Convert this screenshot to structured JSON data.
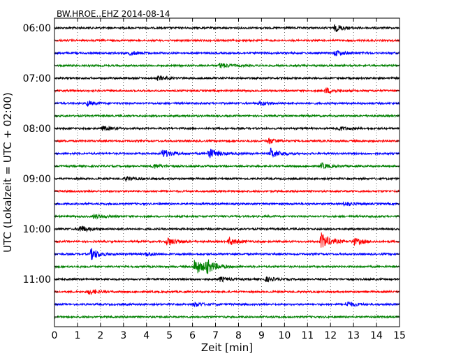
{
  "chart_data": {
    "type": "line",
    "title": "BW.HROE..EHZ 2014-08-14",
    "xlabel": "Zeit  [min]",
    "ylabel": "UTC (Lokalzeit = UTC + 02:00)",
    "xlim": [
      0,
      15
    ],
    "x_ticks": [
      "0",
      "1",
      "2",
      "3",
      "4",
      "5",
      "6",
      "7",
      "8",
      "9",
      "10",
      "11",
      "12",
      "13",
      "14",
      "15"
    ],
    "y_tick_labels": [
      "06:00",
      "07:00",
      "08:00",
      "09:00",
      "10:00",
      "11:00"
    ],
    "grid": "vertical dotted",
    "trace_colors": [
      "#000000",
      "#ff0000",
      "#0000ff",
      "#008000"
    ],
    "traces": [
      {
        "start": "06:00",
        "color": "#000000",
        "events": [
          {
            "t": 12.2,
            "amp": 5
          }
        ]
      },
      {
        "start": "06:15",
        "color": "#ff0000",
        "events": []
      },
      {
        "start": "06:30",
        "color": "#0000ff",
        "events": [
          {
            "t": 3.3,
            "amp": 3
          },
          {
            "t": 12.2,
            "amp": 4
          }
        ]
      },
      {
        "start": "06:45",
        "color": "#008000",
        "events": [
          {
            "t": 7.2,
            "amp": 4
          }
        ]
      },
      {
        "start": "07:00",
        "color": "#000000",
        "events": [
          {
            "t": 4.5,
            "amp": 3
          }
        ]
      },
      {
        "start": "07:15",
        "color": "#ff0000",
        "events": [
          {
            "t": 11.8,
            "amp": 4
          }
        ]
      },
      {
        "start": "07:30",
        "color": "#0000ff",
        "events": [
          {
            "t": 1.4,
            "amp": 3
          },
          {
            "t": 8.9,
            "amp": 3
          }
        ]
      },
      {
        "start": "07:45",
        "color": "#008000",
        "events": []
      },
      {
        "start": "08:00",
        "color": "#000000",
        "events": [
          {
            "t": 2.1,
            "amp": 3
          },
          {
            "t": 12.3,
            "amp": 3
          }
        ]
      },
      {
        "start": "08:15",
        "color": "#ff0000",
        "events": [
          {
            "t": 9.3,
            "amp": 4
          }
        ]
      },
      {
        "start": "08:30",
        "color": "#0000ff",
        "events": [
          {
            "t": 4.7,
            "amp": 6
          },
          {
            "t": 6.7,
            "amp": 8
          },
          {
            "t": 9.4,
            "amp": 7
          }
        ]
      },
      {
        "start": "08:45",
        "color": "#008000",
        "events": [
          {
            "t": 4.3,
            "amp": 3
          },
          {
            "t": 11.6,
            "amp": 4
          }
        ]
      },
      {
        "start": "09:00",
        "color": "#000000",
        "events": [
          {
            "t": 3.1,
            "amp": 3
          }
        ]
      },
      {
        "start": "09:15",
        "color": "#ff0000",
        "events": []
      },
      {
        "start": "09:30",
        "color": "#0000ff",
        "events": [
          {
            "t": 12.6,
            "amp": 3
          }
        ]
      },
      {
        "start": "09:45",
        "color": "#008000",
        "events": [
          {
            "t": 1.7,
            "amp": 3
          }
        ]
      },
      {
        "start": "10:00",
        "color": "#000000",
        "events": [
          {
            "t": 1.1,
            "amp": 5
          }
        ]
      },
      {
        "start": "10:15",
        "color": "#ff0000",
        "events": [
          {
            "t": 4.9,
            "amp": 6
          },
          {
            "t": 7.6,
            "amp": 5
          },
          {
            "t": 11.6,
            "amp": 12
          },
          {
            "t": 13.0,
            "amp": 5
          }
        ]
      },
      {
        "start": "10:30",
        "color": "#0000ff",
        "events": [
          {
            "t": 1.6,
            "amp": 8
          },
          {
            "t": 4.0,
            "amp": 3
          }
        ]
      },
      {
        "start": "10:45",
        "color": "#008000",
        "events": [
          {
            "t": 6.1,
            "amp": 12
          },
          {
            "t": 6.6,
            "amp": 9
          }
        ]
      },
      {
        "start": "11:00",
        "color": "#000000",
        "events": [
          {
            "t": 7.2,
            "amp": 3
          },
          {
            "t": 9.2,
            "amp": 3
          }
        ]
      },
      {
        "start": "11:15",
        "color": "#ff0000",
        "events": [
          {
            "t": 1.5,
            "amp": 4
          }
        ]
      },
      {
        "start": "11:30",
        "color": "#0000ff",
        "events": [
          {
            "t": 6.1,
            "amp": 3
          },
          {
            "t": 12.7,
            "amp": 4
          }
        ]
      },
      {
        "start": "11:45",
        "color": "#008000",
        "events": []
      }
    ]
  }
}
